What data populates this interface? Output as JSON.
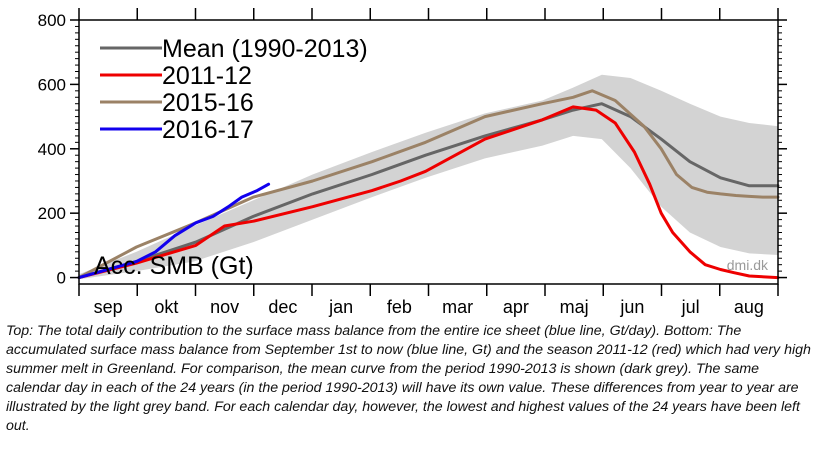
{
  "chart_data": {
    "type": "line",
    "title": "",
    "xlabel": "",
    "ylabel": "",
    "annotation": "Acc. SMB (Gt)",
    "watermark": "dmi.dk",
    "x_ticklabels": [
      "sep",
      "okt",
      "nov",
      "dec",
      "jan",
      "feb",
      "mar",
      "apr",
      "maj",
      "jun",
      "jul",
      "aug"
    ],
    "xlim": [
      0,
      365
    ],
    "ylim": [
      -20,
      800
    ],
    "y_ticks": [
      0,
      200,
      400,
      600,
      800
    ],
    "y_ticklabels": [
      "0",
      "200",
      "400",
      "600",
      "800"
    ],
    "legend_position": "top-left",
    "band": {
      "description_in_caption": true,
      "color": "#d3d3d3",
      "x": [
        0,
        30,
        60,
        91,
        122,
        153,
        181,
        212,
        242,
        258,
        273,
        288,
        304,
        319,
        335,
        350,
        365
      ],
      "lower": [
        -5,
        20,
        50,
        110,
        180,
        250,
        310,
        370,
        410,
        440,
        430,
        340,
        220,
        140,
        95,
        75,
        70
      ],
      "upper": [
        10,
        80,
        160,
        240,
        320,
        390,
        450,
        510,
        550,
        590,
        630,
        620,
        580,
        540,
        500,
        480,
        470
      ]
    },
    "series": [
      {
        "name": "Mean (1990-2013)",
        "color": "#666666",
        "width": 3,
        "x": [
          0,
          30,
          61,
          91,
          122,
          153,
          181,
          212,
          242,
          258,
          273,
          288,
          304,
          319,
          335,
          350,
          365
        ],
        "y": [
          0,
          50,
          110,
          190,
          260,
          320,
          380,
          440,
          490,
          520,
          540,
          500,
          430,
          360,
          310,
          285,
          285
        ]
      },
      {
        "name": "2011-12",
        "color": "#ee0000",
        "width": 3,
        "x": [
          0,
          30,
          61,
          76,
          91,
          122,
          153,
          168,
          181,
          212,
          242,
          258,
          270,
          280,
          290,
          298,
          304,
          310,
          319,
          327,
          335,
          342,
          350,
          365
        ],
        "y": [
          0,
          45,
          100,
          160,
          175,
          220,
          270,
          300,
          330,
          430,
          490,
          530,
          520,
          480,
          390,
          290,
          200,
          140,
          80,
          40,
          25,
          15,
          5,
          0
        ]
      },
      {
        "name": "2015-16",
        "color": "#9b8266",
        "width": 3,
        "x": [
          0,
          30,
          61,
          91,
          122,
          153,
          181,
          212,
          242,
          258,
          268,
          280,
          295,
          304,
          312,
          320,
          328,
          335,
          343,
          350,
          357,
          365
        ],
        "y": [
          0,
          95,
          170,
          250,
          300,
          360,
          420,
          500,
          540,
          560,
          580,
          550,
          470,
          400,
          320,
          280,
          265,
          260,
          255,
          252,
          250,
          250
        ]
      },
      {
        "name": "2016-17",
        "color": "#1100ee",
        "width": 3,
        "x": [
          0,
          15,
          30,
          40,
          50,
          61,
          70,
          78,
          85,
          93,
          99
        ],
        "y": [
          0,
          25,
          50,
          80,
          130,
          170,
          190,
          220,
          250,
          270,
          290
        ]
      }
    ]
  },
  "caption": {
    "text": "Top: The total daily contribution to the surface mass balance from the entire ice sheet (blue line, Gt/day). Bottom: The accumulated surface mass balance from September 1st to now (blue line, Gt) and the season 2011-12 (red) which had very high summer melt in Greenland. For comparison, the mean curve from the period 1990-2013 is shown (dark grey). The same calendar day in each of the 24 years (in the period 1990-2013) will have its own value. These differences from year to year are illustrated by the light grey band. For each calendar day, however, the lowest and highest values of the 24 years have been left out."
  }
}
